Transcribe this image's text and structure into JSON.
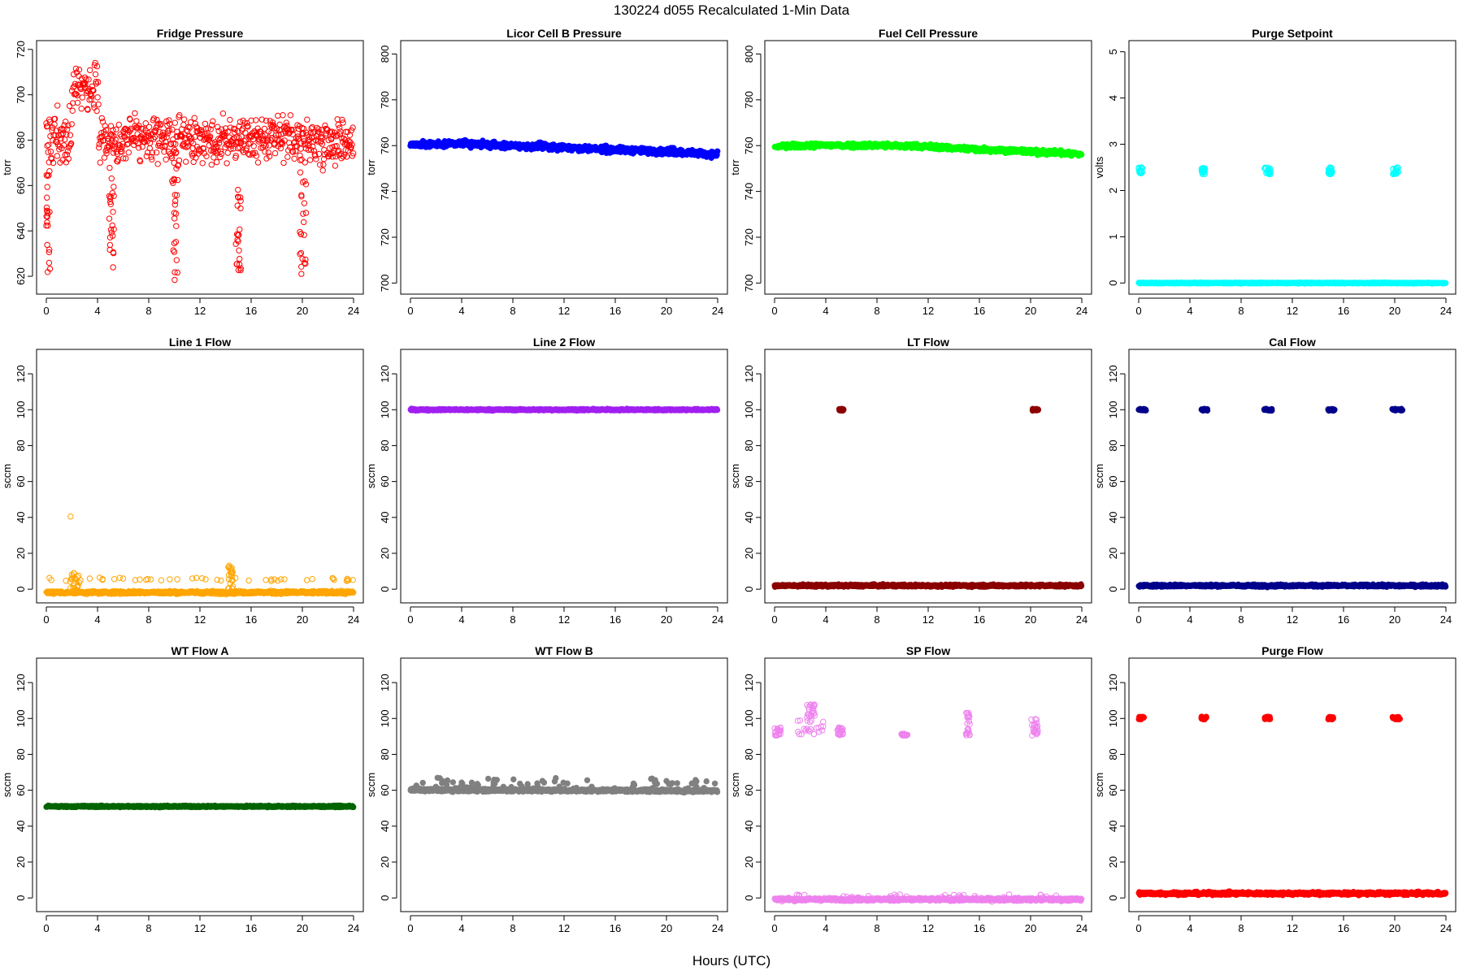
{
  "figure": {
    "title": "130224    d055    Recalculated 1-Min Data",
    "xlabel": "Hours (UTC)"
  },
  "chart_data": [
    {
      "type": "scatter",
      "title": "Fridge Pressure",
      "ylabel": "torr",
      "color": "#ff0000",
      "marker": "open-circle",
      "xlim": [
        0,
        24
      ],
      "xticks": [
        0,
        4,
        8,
        12,
        16,
        20,
        24
      ],
      "ylim": [
        615,
        721
      ],
      "yticks": [
        620,
        640,
        660,
        680,
        700,
        720
      ],
      "regimes": [
        {
          "x": [
            0,
            2.0
          ],
          "mean": 681,
          "spread": 10
        },
        {
          "x": [
            2.0,
            4.1
          ],
          "mean": 704,
          "spread": 9
        },
        {
          "x": [
            4.0,
            6.0
          ],
          "mean": 680,
          "spread": 9
        },
        {
          "x": [
            6.0,
            24
          ],
          "mean": 680,
          "spread": 8
        }
      ],
      "bursts": [
        {
          "x": [
            0.0,
            0.3
          ],
          "y": [
            618,
            670
          ]
        },
        {
          "x": [
            4.9,
            5.3
          ],
          "y": [
            623,
            665
          ]
        },
        {
          "x": [
            9.8,
            10.3
          ],
          "y": [
            616,
            668
          ]
        },
        {
          "x": [
            14.8,
            15.2
          ],
          "y": [
            622,
            662
          ]
        },
        {
          "x": [
            19.8,
            20.3
          ],
          "y": [
            621,
            668
          ]
        }
      ]
    },
    {
      "type": "scatter",
      "title": "Licor Cell B Pressure",
      "ylabel": "torr",
      "color": "#0000ff",
      "marker": "filled-circle",
      "xlim": [
        0,
        24
      ],
      "xticks": [
        0,
        4,
        8,
        12,
        16,
        20,
        24
      ],
      "ylim": [
        698,
        803
      ],
      "yticks": [
        700,
        720,
        740,
        760,
        780,
        800
      ],
      "trend": {
        "x": [
          0,
          2,
          4,
          6,
          8,
          10,
          12,
          14,
          16,
          18,
          20,
          22,
          24
        ],
        "y": [
          760.5,
          760.5,
          761.0,
          760.3,
          759.8,
          759.5,
          759.3,
          758.6,
          758.2,
          757.8,
          757.3,
          756.9,
          756.2
        ]
      },
      "noise": 0.6,
      "bursts": [
        {
          "x": [
            0.0,
            0.3
          ],
          "y": [
            760,
            761
          ]
        },
        {
          "x": [
            5.0,
            5.4
          ],
          "y": [
            760,
            761.5
          ]
        },
        {
          "x": [
            10.0,
            10.3
          ],
          "y": [
            760,
            761.5
          ]
        },
        {
          "x": [
            15.0,
            15.3
          ],
          "y": [
            758.5,
            760
          ]
        },
        {
          "x": [
            20.0,
            20.6
          ],
          "y": [
            757.5,
            759
          ]
        }
      ]
    },
    {
      "type": "scatter",
      "title": "Fuel Cell Pressure",
      "ylabel": "torr",
      "color": "#00ff00",
      "marker": "filled-circle",
      "xlim": [
        0,
        24
      ],
      "xticks": [
        0,
        4,
        8,
        12,
        16,
        20,
        24
      ],
      "ylim": [
        698,
        803
      ],
      "yticks": [
        700,
        720,
        740,
        760,
        780,
        800
      ],
      "trend": {
        "x": [
          0,
          2,
          4,
          6,
          8,
          10,
          12,
          14,
          16,
          18,
          20,
          22,
          24
        ],
        "y": [
          759.5,
          760.0,
          760.2,
          760.1,
          760.2,
          759.8,
          759.6,
          759.0,
          758.4,
          758.0,
          757.3,
          757.0,
          756.2
        ]
      },
      "noise": 0.5,
      "bursts": []
    },
    {
      "type": "scatter",
      "title": "Purge Setpoint",
      "ylabel": "volts",
      "color": "#00ffff",
      "marker": "open-circle",
      "xlim": [
        0,
        24
      ],
      "xticks": [
        0,
        4,
        8,
        12,
        16,
        20,
        24
      ],
      "ylim": [
        -0.1,
        5.1
      ],
      "yticks": [
        0,
        1,
        2,
        3,
        4,
        5
      ],
      "baseline": {
        "y": 0.0,
        "noise": 0.005
      },
      "bursts": [
        {
          "x": [
            0.0,
            0.3
          ],
          "y": [
            2.35,
            2.5
          ]
        },
        {
          "x": [
            4.9,
            5.2
          ],
          "y": [
            2.35,
            2.5
          ]
        },
        {
          "x": [
            9.8,
            10.3
          ],
          "y": [
            2.35,
            2.5
          ]
        },
        {
          "x": [
            14.8,
            15.1
          ],
          "y": [
            2.35,
            2.5
          ]
        },
        {
          "x": [
            19.8,
            20.3
          ],
          "y": [
            2.35,
            2.5
          ]
        }
      ]
    },
    {
      "type": "scatter",
      "title": "Line 1 Flow",
      "ylabel": "sccm",
      "color": "#ffa500",
      "marker": "open-circle",
      "xlim": [
        0,
        24
      ],
      "xticks": [
        0,
        4,
        8,
        12,
        16,
        20,
        24
      ],
      "ylim": [
        -4,
        130
      ],
      "yticks": [
        0,
        20,
        40,
        60,
        80,
        100,
        120
      ],
      "baseline": {
        "y": -1.8,
        "noise": 0.4
      },
      "sparse": {
        "y": [
          4.5,
          6.5
        ],
        "count": 45
      },
      "bursts": [
        {
          "x": [
            1.8,
            2.6
          ],
          "y": [
            0,
            9
          ]
        },
        {
          "x": [
            14.2,
            14.6
          ],
          "y": [
            0,
            14
          ]
        }
      ],
      "outliers": [
        {
          "x": 1.9,
          "y": 40.5
        }
      ]
    },
    {
      "type": "scatter",
      "title": "Line 2 Flow",
      "ylabel": "sccm",
      "color": "#a020f0",
      "marker": "filled-circle",
      "xlim": [
        0,
        24
      ],
      "xticks": [
        0,
        4,
        8,
        12,
        16,
        20,
        24
      ],
      "ylim": [
        -4,
        130
      ],
      "yticks": [
        0,
        20,
        40,
        60,
        80,
        100,
        120
      ],
      "baseline": {
        "y": 100.0,
        "noise": 0.2
      },
      "bursts": []
    },
    {
      "type": "scatter",
      "title": "LT Flow",
      "ylabel": "sccm",
      "color": "#8b0000",
      "marker": "filled-circle",
      "xlim": [
        0,
        24
      ],
      "xticks": [
        0,
        4,
        8,
        12,
        16,
        20,
        24
      ],
      "ylim": [
        -4,
        130
      ],
      "yticks": [
        0,
        20,
        40,
        60,
        80,
        100,
        120
      ],
      "baseline": {
        "y": 2.0,
        "noise": 0.3
      },
      "bursts": [
        {
          "x": [
            5.0,
            5.4
          ],
          "y": [
            99.5,
            100.5
          ]
        },
        {
          "x": [
            20.1,
            20.6
          ],
          "y": [
            99.5,
            100.5
          ]
        }
      ]
    },
    {
      "type": "scatter",
      "title": "Cal Flow",
      "ylabel": "sccm",
      "color": "#00008b",
      "marker": "filled-circle",
      "xlim": [
        0,
        24
      ],
      "xticks": [
        0,
        4,
        8,
        12,
        16,
        20,
        24
      ],
      "ylim": [
        -4,
        130
      ],
      "yticks": [
        0,
        20,
        40,
        60,
        80,
        100,
        120
      ],
      "baseline": {
        "y": 2.0,
        "noise": 0.3
      },
      "bursts": [
        {
          "x": [
            0.0,
            0.6
          ],
          "y": [
            99.5,
            100.5
          ]
        },
        {
          "x": [
            4.9,
            5.4
          ],
          "y": [
            99.5,
            100.5
          ]
        },
        {
          "x": [
            9.8,
            10.4
          ],
          "y": [
            99.5,
            100.5
          ]
        },
        {
          "x": [
            14.8,
            15.3
          ],
          "y": [
            99.5,
            100.5
          ]
        },
        {
          "x": [
            19.8,
            20.6
          ],
          "y": [
            99.5,
            100.5
          ]
        }
      ]
    },
    {
      "type": "scatter",
      "title": "WT Flow A",
      "ylabel": "sccm",
      "color": "#006400",
      "marker": "filled-circle",
      "xlim": [
        0,
        24
      ],
      "xticks": [
        0,
        4,
        8,
        12,
        16,
        20,
        24
      ],
      "ylim": [
        -4,
        130
      ],
      "yticks": [
        0,
        20,
        40,
        60,
        80,
        100,
        120
      ],
      "baseline": {
        "y": 51.0,
        "noise": 0.2
      },
      "bursts": []
    },
    {
      "type": "scatter",
      "title": "WT Flow B",
      "ylabel": "sccm",
      "color": "#808080",
      "marker": "filled-circle",
      "xlim": [
        0,
        24
      ],
      "xticks": [
        0,
        4,
        8,
        12,
        16,
        20,
        24
      ],
      "ylim": [
        -4,
        130
      ],
      "yticks": [
        0,
        20,
        40,
        60,
        80,
        100,
        120
      ],
      "trend": {
        "x": [
          0,
          12,
          24
        ],
        "y": [
          60.2,
          60.0,
          59.7
        ]
      },
      "noise": 0.4,
      "sparse": {
        "y": [
          61,
          67
        ],
        "count": 70
      },
      "bursts": []
    },
    {
      "type": "scatter",
      "title": "SP Flow",
      "ylabel": "sccm",
      "color": "#ee82ee",
      "marker": "open-circle",
      "xlim": [
        0,
        24
      ],
      "xticks": [
        0,
        4,
        8,
        12,
        16,
        20,
        24
      ],
      "ylim": [
        -4,
        130
      ],
      "yticks": [
        0,
        20,
        40,
        60,
        80,
        100,
        120
      ],
      "baseline": {
        "y": -0.8,
        "noise": 0.4
      },
      "sparse": {
        "y": [
          0,
          2
        ],
        "count": 30
      },
      "bursts": [
        {
          "x": [
            0.0,
            0.5
          ],
          "y": [
            90.5,
            95
          ]
        },
        {
          "x": [
            1.8,
            4.0
          ],
          "y": [
            91,
            99
          ]
        },
        {
          "x": [
            2.5,
            3.2
          ],
          "y": [
            99,
            108
          ]
        },
        {
          "x": [
            4.9,
            5.4
          ],
          "y": [
            90.5,
            95
          ]
        },
        {
          "x": [
            9.9,
            10.4
          ],
          "y": [
            90.5,
            91.5
          ]
        },
        {
          "x": [
            14.9,
            15.3
          ],
          "y": [
            90.5,
            104
          ]
        },
        {
          "x": [
            19.9,
            20.6
          ],
          "y": [
            90.5,
            102
          ]
        }
      ]
    },
    {
      "type": "scatter",
      "title": "Purge Flow",
      "ylabel": "sccm",
      "color": "#ff0000",
      "marker": "filled-circle",
      "xlim": [
        0,
        24
      ],
      "xticks": [
        0,
        4,
        8,
        12,
        16,
        20,
        24
      ],
      "ylim": [
        -4,
        130
      ],
      "yticks": [
        0,
        20,
        40,
        60,
        80,
        100,
        120
      ],
      "baseline": {
        "y": 2.5,
        "noise": 0.4
      },
      "bursts": [
        {
          "x": [
            0.0,
            0.4
          ],
          "y": [
            99.5,
            101
          ]
        },
        {
          "x": [
            4.9,
            5.3
          ],
          "y": [
            99.5,
            101
          ]
        },
        {
          "x": [
            9.8,
            10.3
          ],
          "y": [
            99.5,
            101
          ]
        },
        {
          "x": [
            14.8,
            15.2
          ],
          "y": [
            99.5,
            101
          ]
        },
        {
          "x": [
            19.8,
            20.4
          ],
          "y": [
            99.5,
            101
          ]
        }
      ]
    }
  ]
}
